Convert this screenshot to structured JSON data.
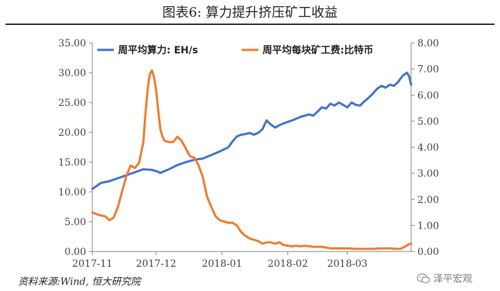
{
  "figure": {
    "title": "图表6:   算力提升挤压矿工收益",
    "source": "资料来源:Wind, 恒大研究院",
    "watermark": "泽平宏观",
    "watermark_icon": "wechat-icon"
  },
  "chart_data": {
    "type": "line",
    "title": "图表6:   算力提升挤压矿工收益",
    "xlabel": "",
    "ylabel_left": "",
    "ylabel_right": "",
    "x_ticks": [
      "2017-11",
      "2017-12",
      "2018-01",
      "2018-02",
      "2018-03"
    ],
    "x_tick_positions": [
      0,
      30,
      61,
      92,
      120
    ],
    "x_range": [
      0,
      150
    ],
    "y_left": {
      "range": [
        0,
        35
      ],
      "ticks": [
        "0.00",
        "5.00",
        "10.00",
        "15.00",
        "20.00",
        "25.00",
        "30.00",
        "35.00"
      ]
    },
    "y_right": {
      "range": [
        0,
        8
      ],
      "ticks": [
        "0.00",
        "1.00",
        "2.00",
        "3.00",
        "4.00",
        "5.00",
        "6.00",
        "7.00",
        "8.00"
      ]
    },
    "grid": false,
    "legend_position": "top",
    "series": [
      {
        "name": "周平均算力: EH/s",
        "axis": "left",
        "color": "#4472C4",
        "points": [
          [
            0,
            10.5
          ],
          [
            2,
            11.0
          ],
          [
            4,
            11.5
          ],
          [
            8,
            11.8
          ],
          [
            12,
            12.3
          ],
          [
            16,
            12.8
          ],
          [
            20,
            13.3
          ],
          [
            24,
            13.8
          ],
          [
            28,
            13.7
          ],
          [
            30,
            13.5
          ],
          [
            32,
            13.2
          ],
          [
            36,
            13.8
          ],
          [
            40,
            14.5
          ],
          [
            44,
            15.0
          ],
          [
            48,
            15.4
          ],
          [
            52,
            15.6
          ],
          [
            56,
            16.2
          ],
          [
            60,
            16.8
          ],
          [
            64,
            17.5
          ],
          [
            66,
            18.5
          ],
          [
            68,
            19.3
          ],
          [
            70,
            19.6
          ],
          [
            72,
            19.7
          ],
          [
            74,
            19.9
          ],
          [
            76,
            19.6
          ],
          [
            78,
            19.9
          ],
          [
            80,
            20.5
          ],
          [
            82,
            22.0
          ],
          [
            84,
            21.3
          ],
          [
            86,
            20.8
          ],
          [
            88,
            21.2
          ],
          [
            90,
            21.5
          ],
          [
            94,
            22.0
          ],
          [
            98,
            22.6
          ],
          [
            102,
            23.0
          ],
          [
            104,
            22.8
          ],
          [
            106,
            23.5
          ],
          [
            108,
            24.2
          ],
          [
            110,
            24.0
          ],
          [
            112,
            24.8
          ],
          [
            114,
            24.5
          ],
          [
            116,
            25.0
          ],
          [
            118,
            24.6
          ],
          [
            120,
            24.2
          ],
          [
            122,
            25.0
          ],
          [
            124,
            24.6
          ],
          [
            126,
            24.5
          ],
          [
            128,
            25.2
          ],
          [
            130,
            25.8
          ],
          [
            132,
            26.5
          ],
          [
            134,
            27.3
          ],
          [
            136,
            27.8
          ],
          [
            138,
            27.5
          ],
          [
            140,
            28.0
          ],
          [
            142,
            27.8
          ],
          [
            144,
            28.5
          ],
          [
            146,
            29.5
          ],
          [
            148,
            30.0
          ],
          [
            149,
            29.5
          ],
          [
            150,
            28.0
          ]
        ]
      },
      {
        "name": "周平均每块矿工费:比特币",
        "axis": "right",
        "color": "#ED7D31",
        "points": [
          [
            0,
            1.5
          ],
          [
            3,
            1.4
          ],
          [
            6,
            1.35
          ],
          [
            8,
            1.2
          ],
          [
            10,
            1.3
          ],
          [
            12,
            1.7
          ],
          [
            14,
            2.3
          ],
          [
            16,
            2.9
          ],
          [
            18,
            3.3
          ],
          [
            20,
            3.2
          ],
          [
            22,
            3.4
          ],
          [
            24,
            4.2
          ],
          [
            25,
            5.3
          ],
          [
            26,
            6.2
          ],
          [
            27,
            6.8
          ],
          [
            28,
            6.95
          ],
          [
            29,
            6.7
          ],
          [
            30,
            6.2
          ],
          [
            31,
            5.4
          ],
          [
            32,
            4.7
          ],
          [
            33,
            4.4
          ],
          [
            34,
            4.25
          ],
          [
            36,
            4.2
          ],
          [
            38,
            4.2
          ],
          [
            40,
            4.4
          ],
          [
            42,
            4.25
          ],
          [
            44,
            3.95
          ],
          [
            46,
            3.65
          ],
          [
            48,
            3.6
          ],
          [
            50,
            3.3
          ],
          [
            52,
            2.85
          ],
          [
            54,
            2.1
          ],
          [
            56,
            1.7
          ],
          [
            58,
            1.35
          ],
          [
            60,
            1.2
          ],
          [
            62,
            1.15
          ],
          [
            64,
            1.1
          ],
          [
            66,
            1.1
          ],
          [
            68,
            1.0
          ],
          [
            70,
            0.75
          ],
          [
            72,
            0.6
          ],
          [
            74,
            0.5
          ],
          [
            76,
            0.45
          ],
          [
            78,
            0.4
          ],
          [
            80,
            0.3
          ],
          [
            82,
            0.35
          ],
          [
            84,
            0.35
          ],
          [
            86,
            0.3
          ],
          [
            88,
            0.35
          ],
          [
            90,
            0.25
          ],
          [
            92,
            0.22
          ],
          [
            94,
            0.2
          ],
          [
            96,
            0.22
          ],
          [
            98,
            0.2
          ],
          [
            100,
            0.22
          ],
          [
            104,
            0.18
          ],
          [
            108,
            0.18
          ],
          [
            112,
            0.12
          ],
          [
            116,
            0.12
          ],
          [
            120,
            0.12
          ],
          [
            124,
            0.1
          ],
          [
            128,
            0.1
          ],
          [
            132,
            0.1
          ],
          [
            136,
            0.12
          ],
          [
            140,
            0.12
          ],
          [
            143,
            0.1
          ],
          [
            145,
            0.1
          ],
          [
            147,
            0.18
          ],
          [
            149,
            0.28
          ],
          [
            150,
            0.3
          ]
        ]
      }
    ]
  }
}
